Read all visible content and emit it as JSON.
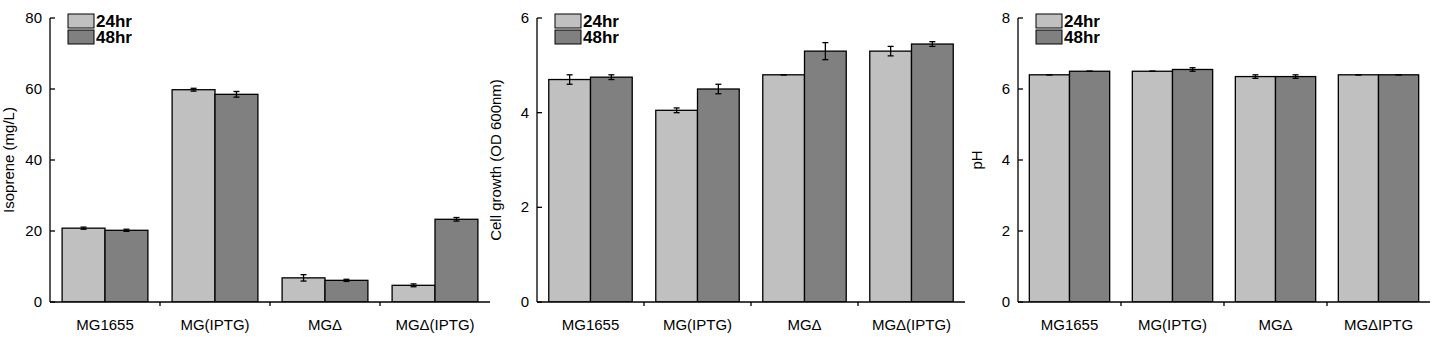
{
  "chart_data": [
    {
      "type": "bar",
      "y_label": "Isoprene (mg/L)",
      "categories": [
        "MG1655",
        "MG(IPTG)",
        "MGΔ",
        "MGΔ(IPTG)"
      ],
      "series": [
        {
          "name": "24hr",
          "color": "#c0c0c0",
          "values": [
            20.8,
            59.8,
            6.8,
            4.7
          ],
          "errors": [
            0.3,
            0.4,
            0.9,
            0.4
          ]
        },
        {
          "name": "48hr",
          "color": "#808080",
          "values": [
            20.2,
            58.5,
            6.1,
            23.3
          ],
          "errors": [
            0.3,
            0.8,
            0.3,
            0.5
          ]
        }
      ],
      "ylim": [
        0,
        80
      ],
      "yticks": [
        0,
        20,
        40,
        60,
        80
      ],
      "legend": "upper left",
      "grid": false
    },
    {
      "type": "bar",
      "y_label": "Cell growth (OD 600nm)",
      "categories": [
        "MG1655",
        "MG(IPTG)",
        "MGΔ",
        "MGΔ(IPTG)"
      ],
      "series": [
        {
          "name": "24hr",
          "color": "#c0c0c0",
          "values": [
            4.7,
            4.05,
            4.8,
            5.3
          ],
          "errors": [
            0.1,
            0.05,
            0,
            0.1
          ]
        },
        {
          "name": "48hr",
          "color": "#808080",
          "values": [
            4.75,
            4.5,
            5.3,
            5.45
          ],
          "errors": [
            0.05,
            0.1,
            0.18,
            0.05
          ]
        }
      ],
      "ylim": [
        0,
        6
      ],
      "yticks": [
        0,
        2,
        4,
        6
      ],
      "legend": "upper left",
      "grid": false
    },
    {
      "type": "bar",
      "y_label": "pH",
      "categories": [
        "MG1655",
        "MG(IPTG)",
        "MGΔ",
        "MGΔIPTG"
      ],
      "series": [
        {
          "name": "24hr",
          "color": "#c0c0c0",
          "values": [
            6.4,
            6.5,
            6.35,
            6.4
          ],
          "errors": [
            0,
            0,
            0.05,
            0
          ]
        },
        {
          "name": "48hr",
          "color": "#808080",
          "values": [
            6.5,
            6.55,
            6.35,
            6.4
          ],
          "errors": [
            0,
            0.05,
            0.05,
            0
          ]
        }
      ],
      "ylim": [
        0,
        8
      ],
      "yticks": [
        0,
        2,
        4,
        6,
        8
      ],
      "legend": "upper left",
      "grid": false
    }
  ]
}
